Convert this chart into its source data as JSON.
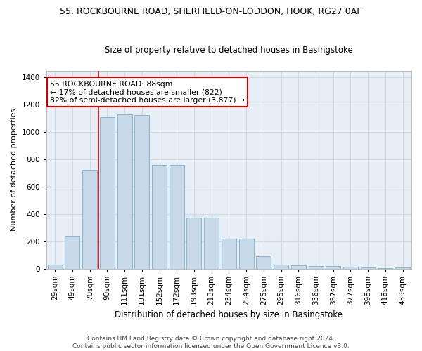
{
  "title1": "55, ROCKBOURNE ROAD, SHERFIELD-ON-LODDON, HOOK, RG27 0AF",
  "title2": "Size of property relative to detached houses in Basingstoke",
  "xlabel": "Distribution of detached houses by size in Basingstoke",
  "ylabel": "Number of detached properties",
  "categories": [
    "29sqm",
    "49sqm",
    "70sqm",
    "90sqm",
    "111sqm",
    "131sqm",
    "152sqm",
    "172sqm",
    "193sqm",
    "213sqm",
    "234sqm",
    "254sqm",
    "275sqm",
    "295sqm",
    "316sqm",
    "336sqm",
    "357sqm",
    "377sqm",
    "398sqm",
    "418sqm",
    "439sqm"
  ],
  "values": [
    28,
    238,
    720,
    1110,
    1130,
    1125,
    760,
    760,
    375,
    375,
    220,
    220,
    90,
    30,
    25,
    20,
    18,
    15,
    10,
    5,
    8
  ],
  "bar_color": "#c8d9ea",
  "bar_edge_color": "#7aaec8",
  "grid_color": "#d0dae6",
  "bg_color": "#e8eef5",
  "vline_color": "#cc0000",
  "vline_x_index": 2.5,
  "annotation_text": "55 ROCKBOURNE ROAD: 88sqm\n← 17% of detached houses are smaller (822)\n82% of semi-detached houses are larger (3,877) →",
  "annotation_box_color": "#ffffff",
  "annotation_box_edge": "#cc0000",
  "footer": "Contains HM Land Registry data © Crown copyright and database right 2024.\nContains public sector information licensed under the Open Government Licence v3.0.",
  "ylim": [
    0,
    1450
  ],
  "title1_fontsize": 9,
  "title2_fontsize": 8.5,
  "xlabel_fontsize": 8.5,
  "ylabel_fontsize": 8,
  "tick_fontsize": 7.5,
  "footer_fontsize": 6.5
}
